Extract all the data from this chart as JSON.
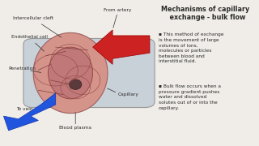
{
  "bg_color": "#f0ede8",
  "title_line1": "Mechanisms of capillary",
  "title_line2": "  exchange - bulk flow",
  "title_fontsize": 5.8,
  "bullet1": "This method of exchange\nis the movement of large\nvolumes of ions,\nmolecules or particles\nbetween blood and\ninterstitial fluid.",
  "bullet2": "Bulk flow occurs when a\npressure gradient pushes\nwater and dissolved\nsolutes out of or into the\ncapillary.",
  "label_intercellular": "Intercellular cleft",
  "label_endothelial": "Endothelial cell",
  "label_penetration": "Penetration",
  "label_to_vein": "To vein",
  "label_from_artery": "From artery",
  "label_capillary": "Capillary",
  "label_blood_plasma": "Blood plasma",
  "text_color": "#2a2a2a",
  "tube_color": "#c8d0d8",
  "tube_edge": "#999999",
  "tissue_color": "#d4948a",
  "tissue_edge": "#a06060",
  "core_color": "#c07878",
  "core_edge": "#904040",
  "nucleus_color": "#5a3a3a",
  "red_arrow_color": "#cc2222",
  "blue_arrow_color": "#2255dd",
  "cell_line_color": "#804040",
  "cell_oval_color": "#904848"
}
